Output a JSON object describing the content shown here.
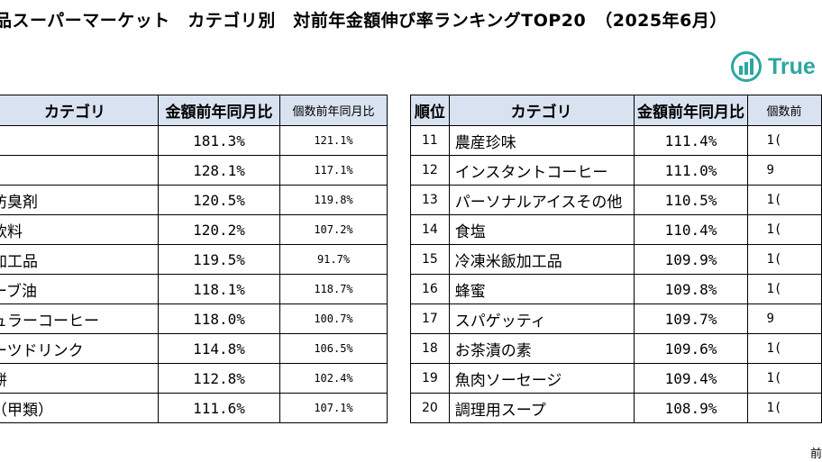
{
  "title": "品スーパーマーケット　カテゴリ別　対前年金額伸び率ランキングTOP20　（2025年6月）",
  "logo": {
    "text": "True D",
    "icon": "bar-chart-arrow-icon",
    "color": "#2aa7a0"
  },
  "headers": {
    "rank": "順位",
    "category": "カテゴリ",
    "amount": "金額前年同月比",
    "count": "個数前年同月比",
    "count_partial": "個数前"
  },
  "left_rows": [
    {
      "category": "",
      "amount": "181.3%",
      "count": "121.1%"
    },
    {
      "category": "",
      "amount": "128.1%",
      "count": "117.1%"
    },
    {
      "category": "防臭剤",
      "amount": "120.5%",
      "count": "119.8%"
    },
    {
      "category": "飲料",
      "amount": "120.2%",
      "count": "107.2%"
    },
    {
      "category": "加工品",
      "amount": "119.5%",
      "count": "91.7%"
    },
    {
      "category": "ーブ油",
      "amount": "118.1%",
      "count": "118.7%"
    },
    {
      "category": "ュラーコーヒー",
      "amount": "118.0%",
      "count": "100.7%"
    },
    {
      "category": "ーツドリンク",
      "amount": "114.8%",
      "count": "106.5%"
    },
    {
      "category": "餅",
      "amount": "112.8%",
      "count": "102.4%"
    },
    {
      "category": "（甲類）",
      "amount": "111.6%",
      "count": "107.1%"
    }
  ],
  "right_rows": [
    {
      "rank": "11",
      "category": "農産珍味",
      "amount": "111.4%",
      "count": "1("
    },
    {
      "rank": "12",
      "category": "インスタントコーヒー",
      "amount": "111.0%",
      "count": "9"
    },
    {
      "rank": "13",
      "category": "パーソナルアイスその他",
      "amount": "110.5%",
      "count": "1("
    },
    {
      "rank": "14",
      "category": "食塩",
      "amount": "110.4%",
      "count": "1("
    },
    {
      "rank": "15",
      "category": "冷凍米飯加工品",
      "amount": "109.9%",
      "count": "1("
    },
    {
      "rank": "16",
      "category": "蜂蜜",
      "amount": "109.8%",
      "count": "1("
    },
    {
      "rank": "17",
      "category": "スパゲッティ",
      "amount": "109.7%",
      "count": "9"
    },
    {
      "rank": "18",
      "category": "お茶漬の素",
      "amount": "109.6%",
      "count": "1("
    },
    {
      "rank": "19",
      "category": "魚肉ソーセージ",
      "amount": "109.4%",
      "count": "1("
    },
    {
      "rank": "20",
      "category": "調理用スープ",
      "amount": "108.9%",
      "count": "1("
    }
  ],
  "footnote": "前"
}
